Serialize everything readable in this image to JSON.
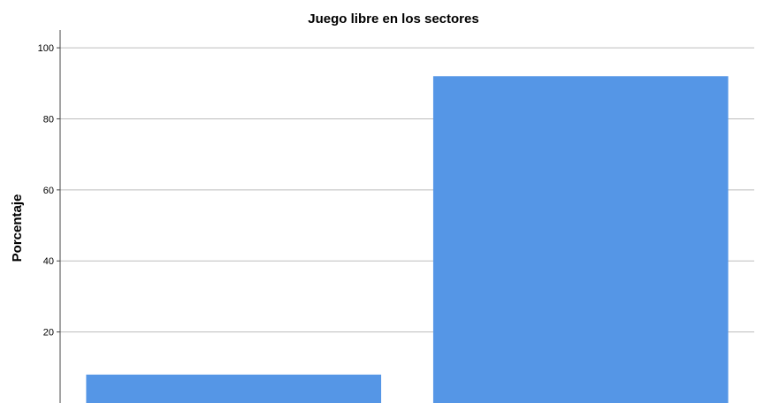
{
  "chart_data": {
    "type": "bar",
    "title": "Juego libre en los sectores",
    "xlabel": "",
    "ylabel": "Porcentaje",
    "ylim": [
      0,
      105
    ],
    "yticks": [
      20,
      40,
      60,
      80,
      100
    ],
    "grid": true,
    "bar_color": "#5596E6",
    "categories": [
      "",
      ""
    ],
    "values": [
      8,
      92
    ]
  }
}
